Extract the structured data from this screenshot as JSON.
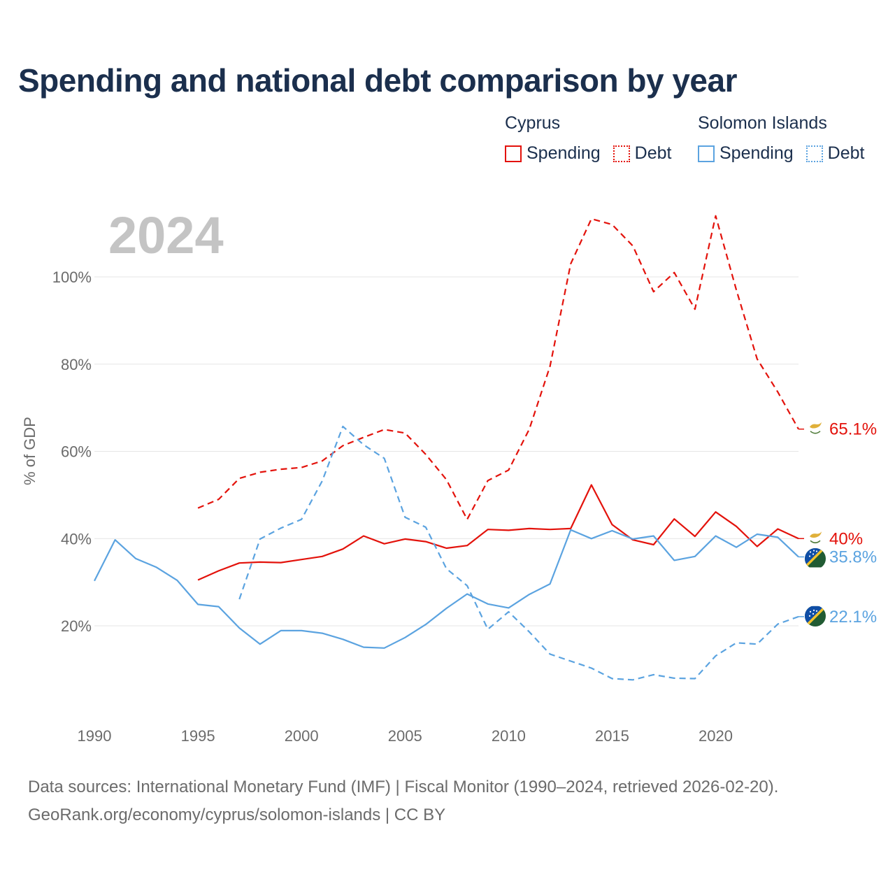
{
  "title": "Spending and national debt comparison by year",
  "year_label": "2024",
  "legend": {
    "groups": [
      {
        "country": "Cyprus",
        "color": "#e3120b",
        "items": [
          {
            "label": "Spending",
            "style": "solid"
          },
          {
            "label": "Debt",
            "style": "dotted"
          }
        ]
      },
      {
        "country": "Solomon Islands",
        "color": "#5ba3e0",
        "items": [
          {
            "label": "Spending",
            "style": "solid"
          },
          {
            "label": "Debt",
            "style": "dotted"
          }
        ]
      }
    ]
  },
  "source": {
    "line1": "Data sources: International Monetary Fund (IMF) | Fiscal Monitor (1990–2024, retrieved 2026-02-20).",
    "line2": "GeoRank.org/economy/cyprus/solomon-islands | CC BY"
  },
  "chart_data": {
    "type": "line",
    "title": "Spending and national debt comparison by year",
    "xlabel": "",
    "ylabel": "% of GDP",
    "xlim": [
      1990,
      2024
    ],
    "ylim": [
      0,
      115
    ],
    "x_ticks": [
      1990,
      1995,
      2000,
      2005,
      2010,
      2015,
      2020
    ],
    "y_ticks": [
      20,
      40,
      60,
      80,
      100
    ],
    "y_tick_labels": [
      "20%",
      "40%",
      "60%",
      "80%",
      "100%"
    ],
    "grid": true,
    "series": [
      {
        "name": "Cyprus Debt",
        "country": "Cyprus",
        "measure": "Debt",
        "color": "#e3120b",
        "dashed": true,
        "end_label": "65.1%",
        "flag": "cyprus",
        "x": [
          1995,
          1996,
          1997,
          1998,
          1999,
          2000,
          2001,
          2002,
          2003,
          2004,
          2005,
          2006,
          2007,
          2008,
          2009,
          2010,
          2011,
          2012,
          2013,
          2014,
          2015,
          2016,
          2017,
          2018,
          2019,
          2020,
          2021,
          2022,
          2023,
          2024
        ],
        "y": [
          47,
          49,
          53.8,
          55.2,
          55.9,
          56.3,
          57.8,
          61.3,
          63.2,
          65,
          64.2,
          59.3,
          53.5,
          44.4,
          53.3,
          55.7,
          65.1,
          79.5,
          103,
          113.3,
          112,
          107.1,
          96.6,
          101,
          92.6,
          114,
          97,
          81.2,
          73.6,
          65.1
        ]
      },
      {
        "name": "Cyprus Spending",
        "country": "Cyprus",
        "measure": "Spending",
        "color": "#e3120b",
        "dashed": false,
        "end_label": "40%",
        "flag": "cyprus",
        "x": [
          1995,
          1996,
          1997,
          1998,
          1999,
          2000,
          2001,
          2002,
          2003,
          2004,
          2005,
          2006,
          2007,
          2008,
          2009,
          2010,
          2011,
          2012,
          2013,
          2014,
          2015,
          2016,
          2017,
          2018,
          2019,
          2020,
          2021,
          2022,
          2023,
          2024
        ],
        "y": [
          30.5,
          32.6,
          34.4,
          34.6,
          34.5,
          35.2,
          35.9,
          37.6,
          40.6,
          38.8,
          39.9,
          39.3,
          37.8,
          38.4,
          42.1,
          41.9,
          42.3,
          42.1,
          42.3,
          52.3,
          43.2,
          39.7,
          38.6,
          44.5,
          40.5,
          46.1,
          42.8,
          38.2,
          42.2,
          40
        ]
      },
      {
        "name": "Solomon Islands Spending",
        "country": "Solomon Islands",
        "measure": "Spending",
        "color": "#5ba3e0",
        "dashed": false,
        "end_label": "35.8%",
        "flag": "solomon",
        "x": [
          1990,
          1991,
          1992,
          1993,
          1994,
          1995,
          1996,
          1997,
          1998,
          1999,
          2000,
          2001,
          2002,
          2003,
          2004,
          2005,
          2006,
          2007,
          2008,
          2009,
          2010,
          2011,
          2012,
          2013,
          2014,
          2015,
          2016,
          2017,
          2018,
          2019,
          2020,
          2021,
          2022,
          2023,
          2024
        ],
        "y": [
          30.3,
          39.7,
          35.4,
          33.4,
          30.4,
          24.9,
          24.4,
          19.5,
          15.8,
          18.9,
          18.9,
          18.3,
          16.9,
          15.1,
          14.9,
          17.3,
          20.3,
          24,
          27.3,
          25,
          24.1,
          27.2,
          29.6,
          42,
          40,
          41.8,
          39.9,
          40.6,
          35,
          35.9,
          40.6,
          38,
          41,
          40.3,
          35.8
        ]
      },
      {
        "name": "Solomon Islands Debt",
        "country": "Solomon Islands",
        "measure": "Debt",
        "color": "#5ba3e0",
        "dashed": true,
        "end_label": "22.1%",
        "flag": "solomon",
        "x": [
          1997,
          1998,
          1999,
          2000,
          2001,
          2002,
          2003,
          2004,
          2005,
          2006,
          2007,
          2008,
          2009,
          2010,
          2011,
          2012,
          2013,
          2014,
          2015,
          2016,
          2017,
          2018,
          2019,
          2020,
          2021,
          2022,
          2023,
          2024
        ],
        "y": [
          26.1,
          39.9,
          42.4,
          44.4,
          53.2,
          65.7,
          61.5,
          58.4,
          44.9,
          42.6,
          33.1,
          29.2,
          19.2,
          23.2,
          18.6,
          13.5,
          11.9,
          10.3,
          7.9,
          7.6,
          8.8,
          8,
          7.9,
          13.1,
          16.1,
          15.8,
          20.4,
          22.1
        ]
      }
    ]
  }
}
